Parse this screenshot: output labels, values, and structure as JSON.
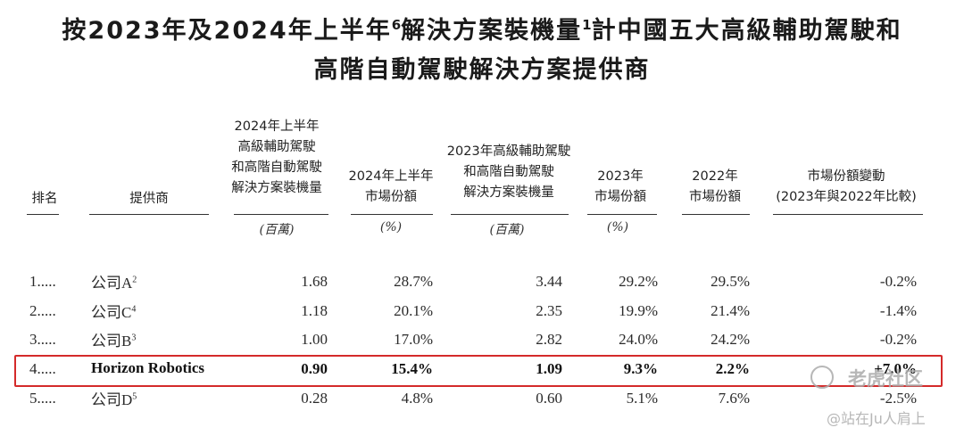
{
  "title": {
    "line1": "按2023年及2024年上半年",
    "line1_sup1": "6",
    "line1_mid": "解決方案裝機量",
    "line1_sup2": "1",
    "line1_end": "計中國五大高級輔助駕駛和",
    "line2": "高階自動駕駛解決方案提供商"
  },
  "headers": {
    "rank": "排名",
    "provider": "提供商",
    "vol2024h1": [
      "2024年上半年",
      "高級輔助駕駛",
      "和高階自動駕駛",
      "解決方案裝機量"
    ],
    "share2024h1": [
      "2024年上半年",
      "市場份額"
    ],
    "vol2023": [
      "2023年高級輔助駕駛",
      "和高階自動駕駛",
      "解決方案裝機量"
    ],
    "share2023": [
      "2023年",
      "市場份額"
    ],
    "share2022": [
      "2022年",
      "市場份額"
    ],
    "change": [
      "市場份額變動",
      "(2023年與2022年比較)"
    ]
  },
  "units": {
    "vol2024h1": "(百萬)",
    "share2024h1": "(%)",
    "vol2023": "(百萬)",
    "share2023": "(%)"
  },
  "rows": [
    {
      "rank": "1.....",
      "provider": "公司A",
      "sup": "2",
      "vol2024h1": "1.68",
      "share2024h1": "28.7%",
      "vol2023": "3.44",
      "share2023": "29.2%",
      "share2022": "29.5%",
      "change": "-0.2%"
    },
    {
      "rank": "2.....",
      "provider": "公司C",
      "sup": "4",
      "vol2024h1": "1.18",
      "share2024h1": "20.1%",
      "vol2023": "2.35",
      "share2023": "19.9%",
      "share2022": "21.4%",
      "change": "-1.4%"
    },
    {
      "rank": "3.....",
      "provider": "公司B",
      "sup": "3",
      "vol2024h1": "1.00",
      "share2024h1": "17.0%",
      "vol2023": "2.82",
      "share2023": "24.0%",
      "share2022": "24.2%",
      "change": "-0.2%"
    },
    {
      "rank": "4.....",
      "provider": "Horizon Robotics",
      "sup": "",
      "vol2024h1": "0.90",
      "share2024h1": "15.4%",
      "vol2023": "1.09",
      "share2023": "9.3%",
      "share2022": "2.2%",
      "change": "+7.0%"
    },
    {
      "rank": "5.....",
      "provider": "公司D",
      "sup": "5",
      "vol2024h1": "0.28",
      "share2024h1": "4.8%",
      "vol2023": "0.60",
      "share2023": "5.1%",
      "share2022": "7.6%",
      "change": "-2.5%"
    }
  ],
  "highlight_color": "#d42a2a",
  "watermark": {
    "brand": "老虎社区",
    "icon": "tiger-logo-icon",
    "handle": "@站在Ju人肩上"
  }
}
